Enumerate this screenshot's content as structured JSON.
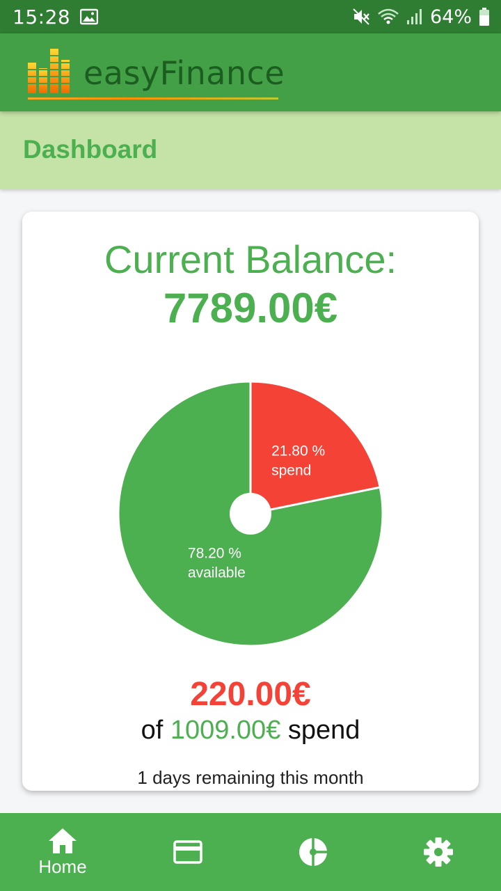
{
  "status_bar": {
    "time": "15:28",
    "battery": "64%",
    "icons": [
      "image-icon",
      "mute-icon",
      "wifi-icon",
      "signal-icon",
      "battery-icon"
    ]
  },
  "app": {
    "name": "easyFinance",
    "logo_icon": "bar-chart-logo-icon"
  },
  "page": {
    "title": "Dashboard"
  },
  "balance": {
    "label": "Current Balance:",
    "value": "7789.00€"
  },
  "chart_data": {
    "type": "pie",
    "values": [
      21.8,
      78.2
    ],
    "labels": [
      "21.80 %",
      "78.20 %"
    ],
    "sublabels": [
      "spend",
      "available"
    ],
    "colors": [
      "#f44336",
      "#4caf50"
    ],
    "donut_hole": true
  },
  "budget": {
    "spent": "220.00€",
    "of_prefix": "of",
    "total": "1009.00€",
    "suffix": "spend",
    "remaining": "1 days remaining this month"
  },
  "bottom_nav": {
    "items": [
      {
        "label": "Home",
        "icon": "home-icon",
        "active": true
      },
      {
        "label": "",
        "icon": "credit-card-icon",
        "active": false
      },
      {
        "label": "",
        "icon": "pie-chart-icon",
        "active": false
      },
      {
        "label": "",
        "icon": "settings-icon",
        "active": false
      }
    ]
  }
}
